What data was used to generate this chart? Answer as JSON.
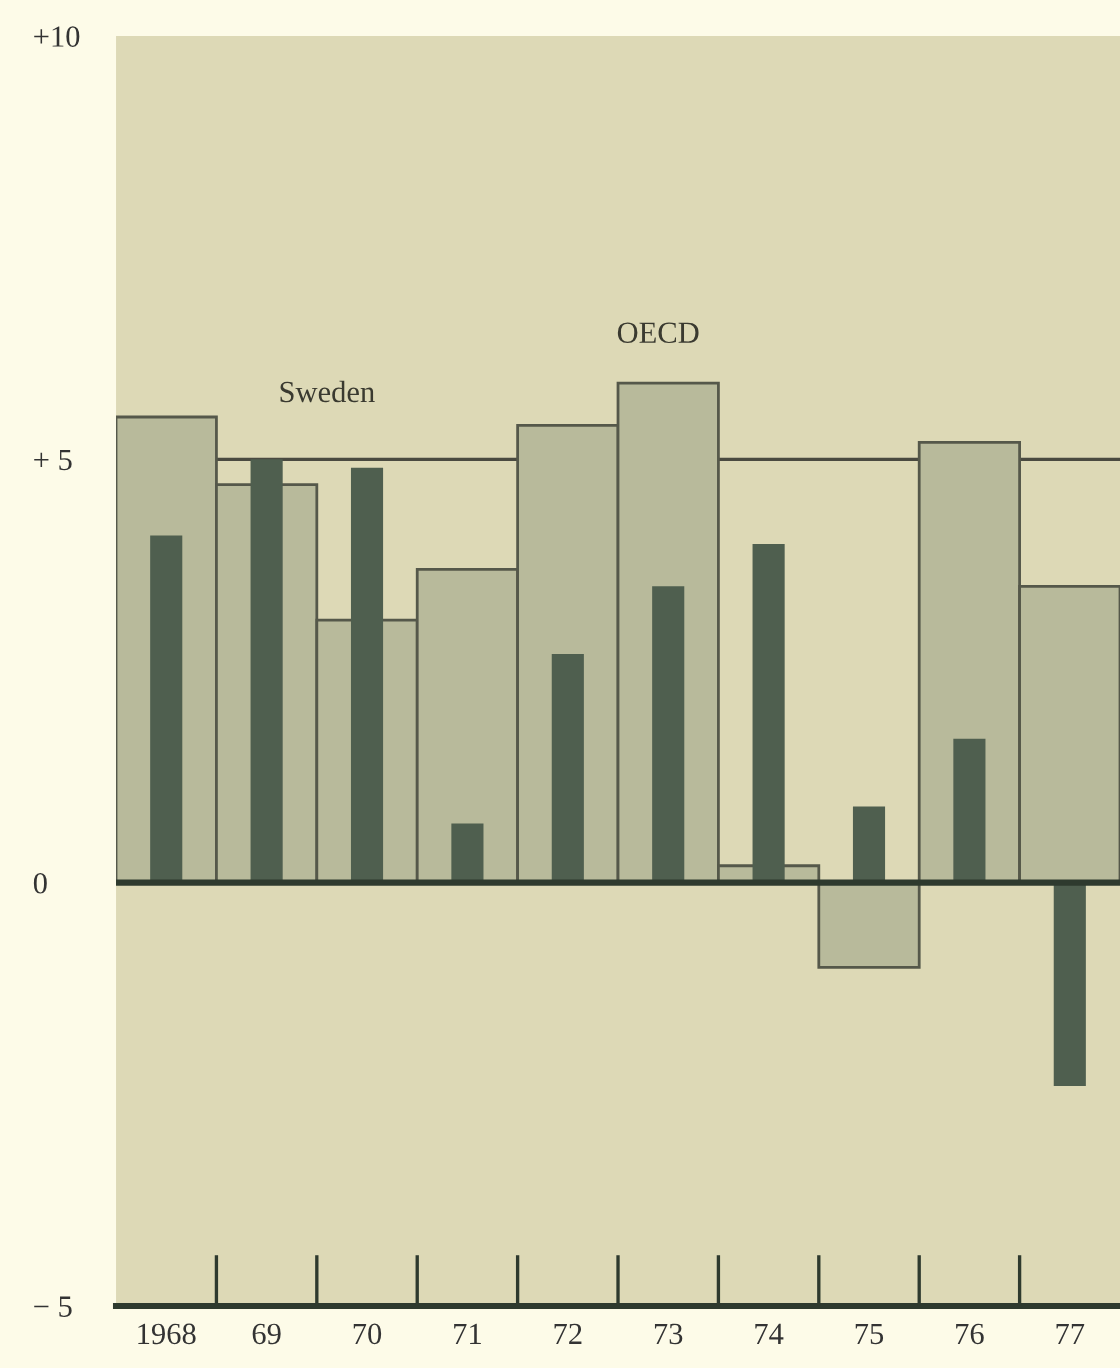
{
  "chart_data": {
    "type": "bar",
    "categories": [
      "1968",
      "69",
      "70",
      "71",
      "72",
      "73",
      "74",
      "75",
      "76",
      "77"
    ],
    "series": [
      {
        "name": "OECD",
        "color": "#b8ba9b",
        "values": [
          5.5,
          4.7,
          3.1,
          3.7,
          5.4,
          5.9,
          0.2,
          -1.0,
          5.2,
          3.5
        ]
      },
      {
        "name": "Sweden",
        "color": "#4f5f4f",
        "values": [
          4.1,
          5.0,
          4.9,
          0.7,
          2.7,
          3.5,
          4.0,
          0.9,
          1.7,
          -2.4
        ]
      }
    ],
    "ylim": [
      -5,
      10
    ],
    "yticks": [
      {
        "value": 10,
        "label": "+10"
      },
      {
        "value": 5,
        "label": "+ 5"
      },
      {
        "value": 0,
        "label": "0"
      },
      {
        "value": -5,
        "label": "− 5"
      }
    ],
    "ref_lines": [
      {
        "axis": "y",
        "value": 5,
        "color": "#4a4a40"
      },
      {
        "axis": "y",
        "value": 0,
        "color": "#2e3a2e"
      }
    ],
    "grid": false,
    "legend": false
  }
}
